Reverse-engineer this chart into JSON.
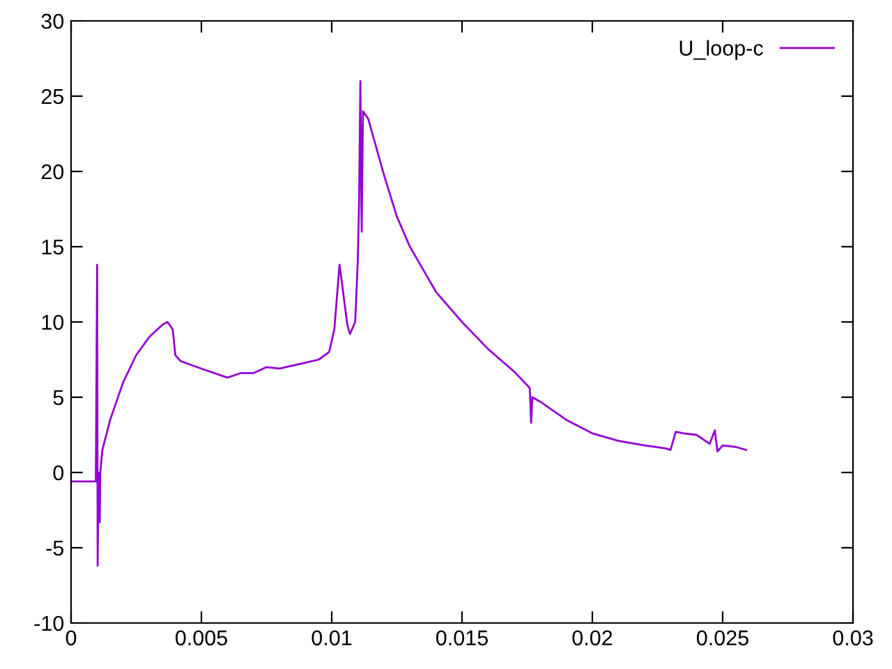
{
  "chart_data": {
    "type": "line",
    "xlim": [
      0,
      0.03
    ],
    "ylim": [
      -10,
      30
    ],
    "xticks": [
      0,
      0.005,
      0.01,
      0.015,
      0.02,
      0.025,
      0.03
    ],
    "yticks": [
      -10,
      -5,
      0,
      5,
      10,
      15,
      20,
      25,
      30
    ],
    "grid": false,
    "legend": "top right",
    "marker": "none",
    "line_style": "solid",
    "series": [
      {
        "name": "U_loop-c",
        "color": "#9400d3",
        "x": [
          0,
          0.0005,
          0.00095,
          0.001,
          0.00102,
          0.00105,
          0.0011,
          0.00112,
          0.0012,
          0.0015,
          0.002,
          0.0025,
          0.003,
          0.0035,
          0.0037,
          0.0039,
          0.004,
          0.0042,
          0.005,
          0.006,
          0.0065,
          0.007,
          0.0075,
          0.008,
          0.009,
          0.0095,
          0.0099,
          0.0101,
          0.0103,
          0.0104,
          0.0106,
          0.0107,
          0.0109,
          0.011,
          0.01105,
          0.0111,
          0.01115,
          0.0112,
          0.0114,
          0.012,
          0.0125,
          0.013,
          0.0135,
          0.014,
          0.015,
          0.016,
          0.017,
          0.0175,
          0.0176,
          0.01765,
          0.0177,
          0.018,
          0.019,
          0.02,
          0.021,
          0.022,
          0.0228,
          0.023,
          0.0232,
          0.0235,
          0.024,
          0.0245,
          0.0247,
          0.0248,
          0.025,
          0.0255,
          0.0259
        ],
        "values": [
          -0.6,
          -0.6,
          -0.6,
          13.8,
          -6.2,
          0,
          -3.3,
          0,
          1.5,
          3.5,
          6.0,
          7.8,
          9.0,
          9.8,
          10.0,
          9.5,
          7.8,
          7.4,
          6.9,
          6.3,
          6.6,
          6.6,
          7.0,
          6.9,
          7.3,
          7.5,
          8.0,
          9.5,
          13.8,
          12.5,
          9.8,
          9.2,
          10.0,
          14,
          18,
          26,
          16,
          24,
          23.5,
          19.8,
          17.0,
          15.0,
          13.5,
          12.0,
          10.0,
          8.2,
          6.7,
          5.8,
          5.6,
          3.3,
          5.0,
          4.7,
          3.5,
          2.6,
          2.1,
          1.8,
          1.6,
          1.5,
          2.7,
          2.6,
          2.5,
          1.9,
          2.8,
          1.4,
          1.8,
          1.7,
          1.5
        ]
      }
    ]
  }
}
